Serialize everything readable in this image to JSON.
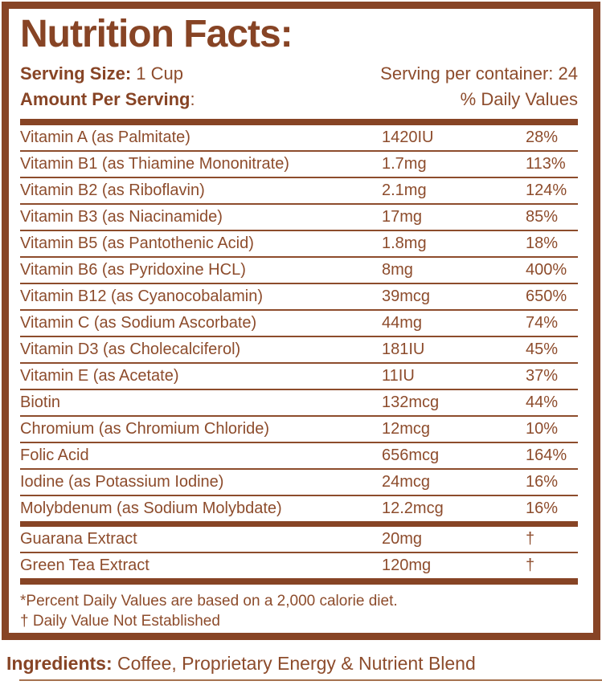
{
  "title": "Nutrition Facts:",
  "serving": {
    "size_label": "Serving Size:",
    "size_value": "1 Cup",
    "per_container": "Serving per container: 24"
  },
  "columns": {
    "amount_label": "Amount Per Serving",
    "amount_colon": ":",
    "daily_values_label": "% Daily Values"
  },
  "rows": [
    {
      "name": "Vitamin A (as Palmitate)",
      "amount": "1420IU",
      "dv": "28%"
    },
    {
      "name": "Vitamin B1 (as Thiamine Mononitrate)",
      "amount": "1.7mg",
      "dv": "113%"
    },
    {
      "name": "Vitamin B2 (as Riboflavin)",
      "amount": "2.1mg",
      "dv": "124%"
    },
    {
      "name": "Vitamin B3 (as Niacinamide)",
      "amount": "17mg",
      "dv": "85%"
    },
    {
      "name": "Vitamin B5 (as Pantothenic Acid)",
      "amount": "1.8mg",
      "dv": "18%"
    },
    {
      "name": "Vitamin B6 (as Pyridoxine HCL)",
      "amount": "8mg",
      "dv": "400%"
    },
    {
      "name": "Vitamin B12 (as Cyanocobalamin)",
      "amount": "39mcg",
      "dv": "650%"
    },
    {
      "name": "Vitamin C (as Sodium Ascorbate)",
      "amount": "44mg",
      "dv": "74%"
    },
    {
      "name": "Vitamin D3 (as Cholecalciferol)",
      "amount": "181IU",
      "dv": "45%"
    },
    {
      "name": "Vitamin E (as Acetate)",
      "amount": "11IU",
      "dv": "37%"
    },
    {
      "name": "Biotin",
      "amount": "132mcg",
      "dv": "44%"
    },
    {
      "name": "Chromium (as Chromium Chloride)",
      "amount": "12mcg",
      "dv": "10%"
    },
    {
      "name": "Folic Acid",
      "amount": "656mcg",
      "dv": "164%"
    },
    {
      "name": "Iodine (as Potassium Iodine)",
      "amount": "24mcg",
      "dv": "16%"
    },
    {
      "name": "Molybdenum (as Sodium Molybdate)",
      "amount": "12.2mcg",
      "dv": "16%"
    }
  ],
  "extras": [
    {
      "name": "Guarana Extract",
      "amount": "20mg",
      "dv": "†"
    },
    {
      "name": "Green Tea Extract",
      "amount": "120mg",
      "dv": "†"
    }
  ],
  "footnotes": {
    "line1": "*Percent Daily Values are based on a 2,000 calorie diet.",
    "line2": "† Daily Value Not Established"
  },
  "ingredients": {
    "label": "Ingredients:",
    "value": " Coffee, Proprietary Energy & Nutrient Blend"
  },
  "colors": {
    "brown": "#874425",
    "brown_text": "#8d4c2c",
    "background": "#ffffff"
  }
}
